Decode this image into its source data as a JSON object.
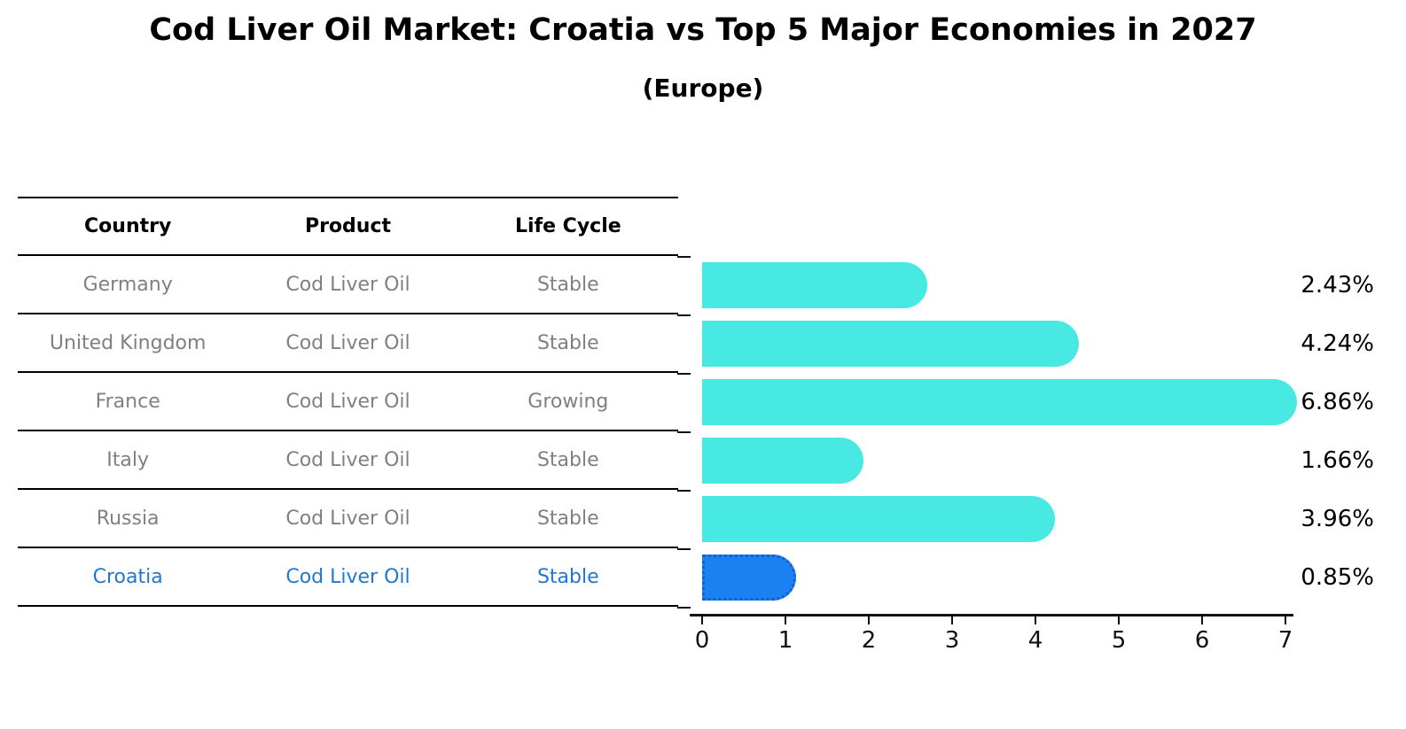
{
  "title": "Cod Liver Oil Market: Croatia vs Top 5 Major Economies in 2027",
  "subtitle": "(Europe)",
  "colors": {
    "bar_default": "#49E9E3",
    "bar_highlight": "#1B81F2",
    "highlight_border": "#1060D0",
    "highlight_text": "#1E78D2",
    "cell_text": "#808080"
  },
  "table": {
    "headers": [
      "Country",
      "Product",
      "Life Cycle"
    ],
    "rows": [
      {
        "country": "Germany",
        "product": "Cod Liver Oil",
        "life_cycle": "Stable"
      },
      {
        "country": "United Kingdom",
        "product": "Cod Liver Oil",
        "life_cycle": "Stable"
      },
      {
        "country": "France",
        "product": "Cod Liver Oil",
        "life_cycle": "Growing"
      },
      {
        "country": "Italy",
        "product": "Cod Liver Oil",
        "life_cycle": "Stable"
      },
      {
        "country": "Russia",
        "product": "Cod Liver Oil",
        "life_cycle": "Stable"
      },
      {
        "country": "Croatia",
        "product": "Cod Liver Oil",
        "life_cycle": "Stable"
      }
    ],
    "highlight_row": "Croatia"
  },
  "chart_data": {
    "type": "bar",
    "orientation": "horizontal",
    "title": "Cod Liver Oil Market: Croatia vs Top 5 Major Economies in 2027 (Europe)",
    "categories": [
      "Germany",
      "United Kingdom",
      "France",
      "Italy",
      "Russia",
      "Croatia"
    ],
    "values": [
      2.43,
      4.24,
      6.86,
      1.66,
      3.96,
      0.85
    ],
    "labels": [
      "2.43%",
      "4.24%",
      "6.86%",
      "1.66%",
      "3.96%",
      "0.85%"
    ],
    "unit": "percent",
    "x_ticks": [
      "0",
      "1",
      "2",
      "3",
      "4",
      "5",
      "6",
      "7"
    ],
    "xlim": [
      0,
      7.2
    ],
    "highlight_index": 5,
    "grid": false,
    "legend": false
  }
}
